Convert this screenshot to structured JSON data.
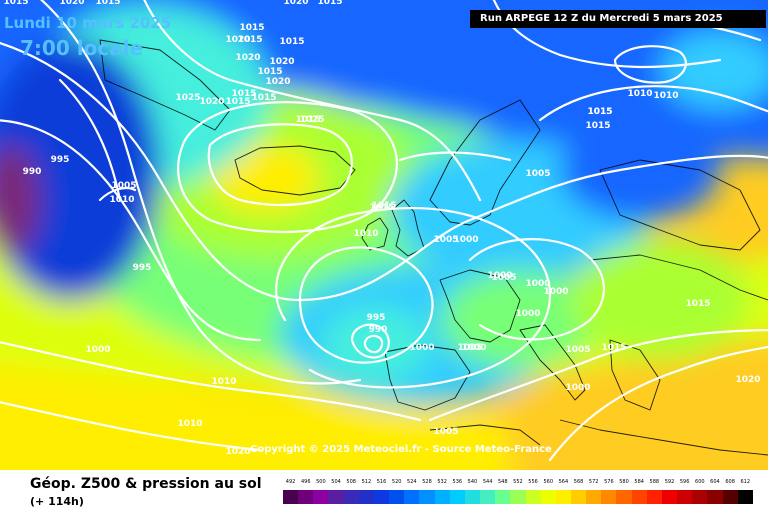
{
  "header": {
    "date": "Lundi 10 mars 2025",
    "time": "7:00 locale",
    "run": "Run ARPEGE 12 Z du Mercredi 5 mars 2025"
  },
  "copyright": "Copyright © 2025 Meteociel.fr - Source Meteo-France",
  "footer": {
    "title": "Géop. Z500 & pression au sol",
    "subtitle": "(+ 114h)"
  },
  "legend": {
    "values": [
      "492",
      "496",
      "500",
      "504",
      "508",
      "512",
      "516",
      "520",
      "524",
      "528",
      "532",
      "536",
      "540",
      "544",
      "548",
      "552",
      "556",
      "560",
      "564",
      "568",
      "572",
      "576",
      "580",
      "584",
      "588",
      "592",
      "596",
      "600",
      "604",
      "608",
      "612"
    ],
    "colors": [
      "#4a0050",
      "#6e007a",
      "#8a00a0",
      "#5a1fa0",
      "#3a2ab8",
      "#2030c8",
      "#1038e0",
      "#0050f0",
      "#0070ff",
      "#0090ff",
      "#00b0ff",
      "#00ccff",
      "#22dde0",
      "#44eec0",
      "#66ff90",
      "#99ff55",
      "#ccff22",
      "#eeff00",
      "#ffee00",
      "#ffcc00",
      "#ffaa00",
      "#ff8800",
      "#ff6600",
      "#ff4400",
      "#ff2200",
      "#ee0000",
      "#cc0000",
      "#aa0000",
      "#880000",
      "#550000",
      "#000000"
    ]
  },
  "map": {
    "colors": {
      "ocean_deep": "#0a3ed8",
      "ocean_blue": "#1466ff",
      "cyan": "#33ccff",
      "aqua": "#44eedd",
      "green": "#77ff77",
      "lime": "#aaff33",
      "yellow_green": "#ddff11",
      "yellow": "#ffee00",
      "gold": "#ffcc22",
      "orange": "#ffaa33",
      "purple_core": "#7a2a78",
      "isobar": "#ffffff",
      "coastline": "#000000"
    },
    "pressure_labels": [
      "1015",
      "1020",
      "1015",
      "1020",
      "1015",
      "1015",
      "1020",
      "1015",
      "1015",
      "1020",
      "1020",
      "1015",
      "1015",
      "1020",
      "1025",
      "1020",
      "1015",
      "1015",
      "1005",
      "1010",
      "1015",
      "1015",
      "1015",
      "1025",
      "990",
      "995",
      "1005",
      "1000",
      "1005",
      "1005",
      "1015",
      "1010",
      "1005",
      "995",
      "1000",
      "1000",
      "1000",
      "1000",
      "995",
      "990",
      "1000",
      "1000",
      "1000",
      "1005",
      "1015",
      "1015",
      "1000",
      "1005",
      "1010",
      "1020",
      "1010",
      "1015",
      "1010",
      "1015",
      "1020",
      "1010"
    ]
  }
}
